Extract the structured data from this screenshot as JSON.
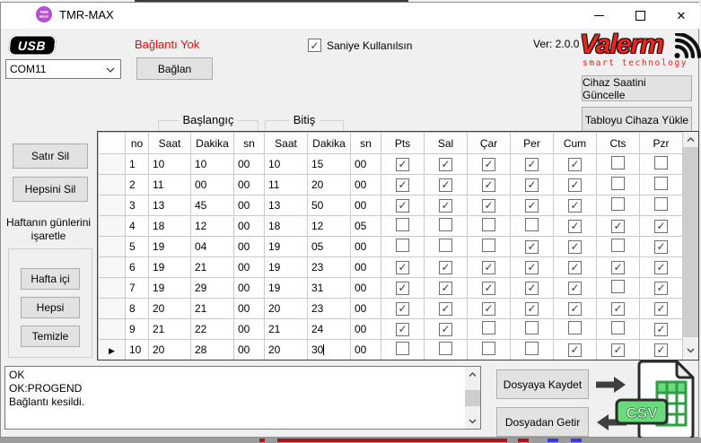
{
  "window": {
    "title": "TMR-MAX",
    "icon_line1": "TMR",
    "icon_line2": "MAX",
    "version": "Ver: 2.0.0"
  },
  "connection": {
    "usb_label": "USB",
    "status_text": "Bağlantı Yok",
    "port_value": "COM11",
    "connect_button": "Bağlan",
    "seconds_label": "Saniye Kullanılsın",
    "seconds_checked": true
  },
  "brand": {
    "name": "Valerm",
    "tagline": "smart technology"
  },
  "device_buttons": {
    "update_clock": "Cihaz Saatini Güncelle",
    "upload_table": "Tabloyu Cihaza Yükle"
  },
  "sidebar": {
    "delete_row": "Satır Sil",
    "delete_all": "Hepsini Sil",
    "mark_days_line1": "Haftanın günlerini",
    "mark_days_line2": "işaretle",
    "weekdays": "Hafta içi",
    "all_days": "Hepsi",
    "clear_days": "Temizle"
  },
  "table": {
    "group_start": "Başlangıç",
    "group_end": "Bitiş",
    "columns": [
      "no",
      "Saat",
      "Dakika",
      "sn",
      "Saat",
      "Dakika",
      "sn",
      "Pts",
      "Sal",
      "Çar",
      "Per",
      "Cum",
      "Cts",
      "Pzr"
    ],
    "rows": [
      {
        "no": "1",
        "start": [
          "10",
          "10",
          "00"
        ],
        "end": [
          "10",
          "15",
          "00"
        ],
        "days": [
          true,
          true,
          true,
          true,
          true,
          false,
          false
        ]
      },
      {
        "no": "2",
        "start": [
          "11",
          "00",
          "00"
        ],
        "end": [
          "11",
          "20",
          "00"
        ],
        "days": [
          true,
          true,
          true,
          true,
          true,
          false,
          false
        ]
      },
      {
        "no": "3",
        "start": [
          "13",
          "45",
          "00"
        ],
        "end": [
          "13",
          "50",
          "00"
        ],
        "days": [
          true,
          true,
          true,
          true,
          true,
          false,
          false
        ]
      },
      {
        "no": "4",
        "start": [
          "18",
          "12",
          "00"
        ],
        "end": [
          "18",
          "12",
          "05"
        ],
        "days": [
          false,
          false,
          false,
          false,
          true,
          true,
          true
        ]
      },
      {
        "no": "5",
        "start": [
          "19",
          "04",
          "00"
        ],
        "end": [
          "19",
          "05",
          "00"
        ],
        "days": [
          false,
          false,
          false,
          true,
          true,
          false,
          true
        ]
      },
      {
        "no": "6",
        "start": [
          "19",
          "21",
          "00"
        ],
        "end": [
          "19",
          "23",
          "00"
        ],
        "days": [
          true,
          true,
          true,
          true,
          true,
          true,
          true
        ]
      },
      {
        "no": "7",
        "start": [
          "19",
          "29",
          "00"
        ],
        "end": [
          "19",
          "31",
          "00"
        ],
        "days": [
          true,
          true,
          true,
          true,
          true,
          false,
          true
        ]
      },
      {
        "no": "8",
        "start": [
          "20",
          "21",
          "00"
        ],
        "end": [
          "20",
          "23",
          "00"
        ],
        "days": [
          true,
          true,
          true,
          true,
          true,
          true,
          true
        ]
      },
      {
        "no": "9",
        "start": [
          "21",
          "22",
          "00"
        ],
        "end": [
          "21",
          "24",
          "00"
        ],
        "days": [
          true,
          true,
          false,
          false,
          false,
          false,
          true
        ]
      },
      {
        "no": "10",
        "start": [
          "20",
          "28",
          "00"
        ],
        "end": [
          "20",
          "30",
          "00"
        ],
        "days": [
          false,
          false,
          false,
          false,
          true,
          true,
          true
        ],
        "selected": true,
        "editing": "end-min"
      }
    ]
  },
  "log": {
    "lines": [
      "OK",
      "OK:PROGEND",
      "Bağlantı kesildi."
    ]
  },
  "file_buttons": {
    "save": "Dosyaya Kaydet",
    "load": "Dosyadan Getir",
    "csv_label": "CSV"
  },
  "colors": {
    "brand_red": "#e8251c",
    "status_red": "#ff0000",
    "icon_purple": "#b44fd0",
    "csv_green": "#69db7c"
  }
}
